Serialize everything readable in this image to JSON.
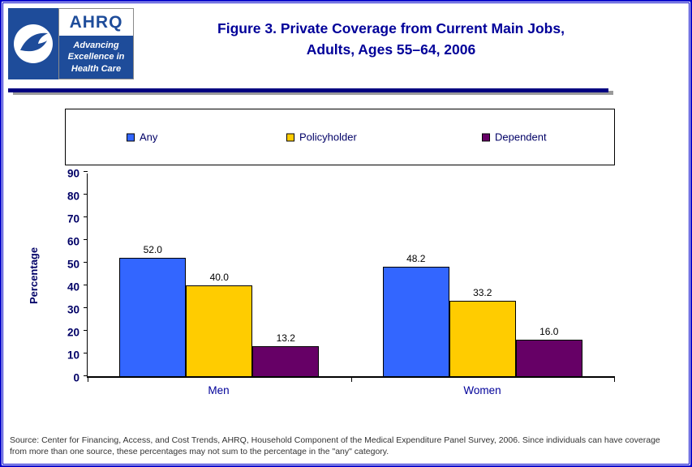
{
  "header": {
    "title_line1": "Figure 3. Private Coverage from Current Main Jobs,",
    "title_line2": "Adults, Ages 55–64, 2006",
    "hhs_logo_name": "hhs-eagle-seal",
    "ahrq_logo": {
      "acronym": "AHRQ",
      "tagline": [
        "Advancing",
        "Excellence in",
        "Health Care"
      ]
    }
  },
  "chart_data": {
    "type": "bar",
    "title": "Figure 3. Private Coverage from Current Main Jobs, Adults, Ages 55–64, 2006",
    "categories": [
      "Men",
      "Women"
    ],
    "series": [
      {
        "name": "Any",
        "color": "#3366FF",
        "values": [
          52.0,
          48.2
        ]
      },
      {
        "name": "Policyholder",
        "color": "#FFCC00",
        "values": [
          40.0,
          33.2
        ]
      },
      {
        "name": "Dependent",
        "color": "#660066",
        "values": [
          13.2,
          16.0
        ]
      }
    ],
    "xlabel": "",
    "ylabel": "Percentage",
    "ylim": [
      0,
      90
    ],
    "ytick_step": 10,
    "value_label_decimals": 1,
    "grid": false,
    "legend_position": "top"
  },
  "source_note": "Source: Center for Financing, Access, and Cost Trends, AHRQ, Household Component of the Medical Expenditure Panel Survey, 2006. Since individuals can have coverage from more than one source, these percentages may not sum to the percentage in the \"any\" category.",
  "colors": {
    "title": "#000099",
    "axis_text": "#000066",
    "category_text": "#000099",
    "value_label": "#000000",
    "frame_border": "#0000CC",
    "divider": "#000080",
    "logo_blue": "#1E4C9A",
    "source_text": "#333333"
  }
}
